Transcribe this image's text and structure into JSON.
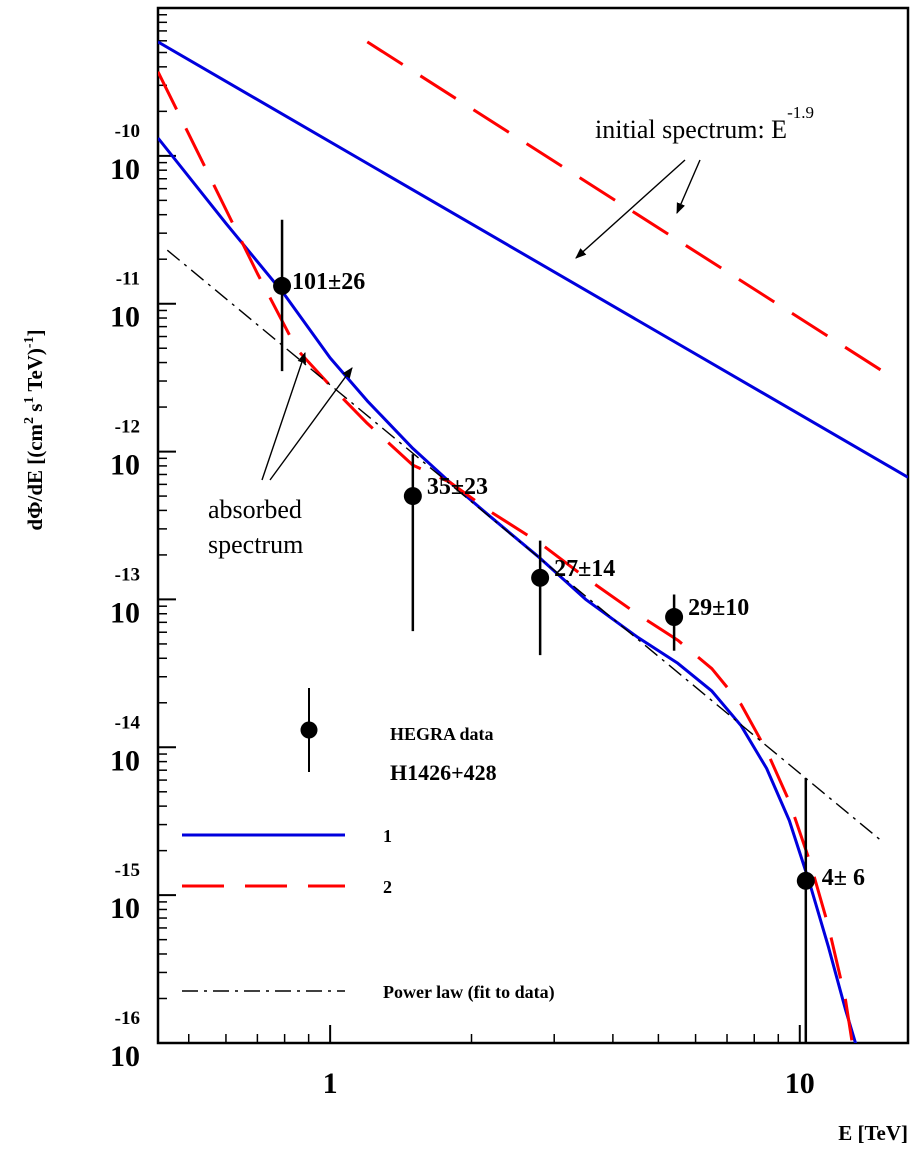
{
  "chart_data": {
    "type": "line",
    "xscale": "log",
    "yscale": "log",
    "xlim": [
      0.43,
      17
    ],
    "ylim": [
      1e-16,
      1e-09
    ],
    "xlabel": "E [TeV]",
    "ylabel": {
      "main": "dΦ/dE [(cm",
      "sup1": "2",
      "mid1": " s",
      "sup2": "1",
      "mid2": " TeV)",
      "sup3": "-1",
      "end": "]"
    },
    "x_ticks": [
      {
        "value": 1,
        "label": "1"
      },
      {
        "value": 10,
        "label": "10"
      }
    ],
    "y_ticks": [
      {
        "value": -10,
        "base": "10",
        "exp": "-10"
      },
      {
        "value": -11,
        "base": "10",
        "exp": "-11"
      },
      {
        "value": -12,
        "base": "10",
        "exp": "-12"
      },
      {
        "value": -13,
        "base": "10",
        "exp": "-13"
      },
      {
        "value": -14,
        "base": "10",
        "exp": "-14"
      },
      {
        "value": -15,
        "base": "10",
        "exp": "-15"
      },
      {
        "value": -16,
        "base": "10",
        "exp": "-16"
      }
    ],
    "series": [
      {
        "name": "1",
        "role": "initial",
        "color": "#0000dd",
        "style": "solid",
        "x": [
          0.43,
          17
        ],
        "y": [
          5.9e-10,
          6.7e-13
        ]
      },
      {
        "name": "2",
        "role": "initial",
        "color": "#ff0000",
        "style": "dashed",
        "x": [
          1.2,
          15
        ],
        "y": [
          5.9e-10,
          3.5e-12
        ]
      },
      {
        "name": "1",
        "role": "absorbed",
        "color": "#0000dd",
        "style": "solid",
        "x": [
          0.43,
          0.6,
          0.8,
          1.0,
          1.2,
          1.5,
          1.8,
          2.2,
          2.8,
          3.5,
          4.5,
          5.5,
          6.5,
          7.5,
          8.5,
          9.5,
          10.5,
          11.5,
          12.5,
          13.5
        ],
        "y": [
          1.32e-10,
          3.5e-11,
          1.15e-11,
          4.3e-12,
          2.2e-12,
          1.05e-12,
          6.2e-13,
          3.6e-13,
          1.9e-13,
          1e-13,
          5.6e-14,
          3.7e-14,
          2.4e-14,
          1.4e-14,
          7.2e-15,
          3.2e-15,
          1.2e-15,
          4.5e-16,
          1.7e-16,
          7.5e-17
        ]
      },
      {
        "name": "2",
        "role": "absorbed",
        "color": "#ff0000",
        "style": "dashed",
        "x": [
          0.43,
          0.55,
          0.7,
          0.85,
          1.0,
          1.2,
          1.5,
          1.8,
          2.2,
          2.8,
          3.5,
          4.5,
          5.5,
          6.5,
          7.5,
          8.5,
          9.5,
          10.5,
          11.5,
          12.5,
          13.0
        ],
        "y": [
          3.7e-10,
          7.6e-11,
          1.6e-11,
          4.9e-12,
          2.8e-12,
          1.55e-12,
          8.1e-13,
          6.2e-13,
          3.9e-13,
          2.4e-13,
          1.4e-13,
          8e-14,
          5.3e-14,
          3.4e-14,
          1.95e-14,
          9.5e-15,
          4.3e-15,
          1.7e-15,
          6.2e-16,
          2e-16,
          9e-17
        ]
      },
      {
        "name": "Power law (fit to data)",
        "role": "fit",
        "color": "#000000",
        "style": "dashdot",
        "x": [
          0.45,
          15
        ],
        "y": [
          2.3e-11,
          2.3e-15
        ]
      }
    ],
    "data_points": [
      {
        "x": 0.79,
        "y": 1.32e-11,
        "ylow": 3.5e-12,
        "yhigh": 3.7e-11,
        "label": "101±26"
      },
      {
        "x": 1.5,
        "y": 5e-13,
        "ylow": 6.1e-14,
        "yhigh": 9.6e-13,
        "label": "35±23"
      },
      {
        "x": 2.8,
        "y": 1.4e-13,
        "ylow": 4.2e-14,
        "yhigh": 2.5e-13,
        "label": "27±14"
      },
      {
        "x": 5.4,
        "y": 7.6e-14,
        "ylow": 4.5e-14,
        "yhigh": 1.08e-13,
        "label": "29±10"
      },
      {
        "x": 10.3,
        "y": 1.25e-15,
        "ylow": 1e-16,
        "yhigh": 6.2e-15,
        "label": "4± 6"
      }
    ],
    "annotations": {
      "initial_text": "initial spectrum: E",
      "initial_exp": "-1.9",
      "absorbed_line1": "absorbed",
      "absorbed_line2": "spectrum"
    },
    "legend": {
      "placement": "bottom-left",
      "data_label": "HEGRA data",
      "source_label": "H1426+428",
      "line1_label": "1",
      "line2_label": "2",
      "fit_label": "Power law (fit to data)"
    }
  }
}
